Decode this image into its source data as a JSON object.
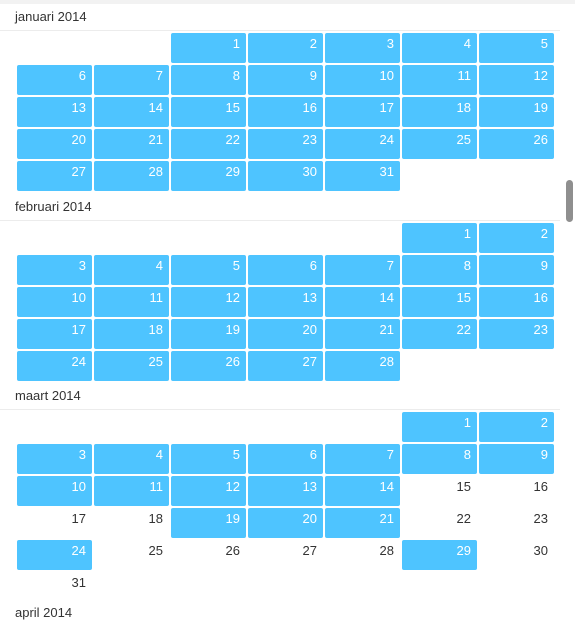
{
  "months": [
    {
      "title": "januari 2014",
      "start_col": 2,
      "days": 31,
      "selected": [
        1,
        2,
        3,
        4,
        5,
        6,
        7,
        8,
        9,
        10,
        11,
        12,
        13,
        14,
        15,
        16,
        17,
        18,
        19,
        20,
        21,
        22,
        23,
        24,
        25,
        26,
        27,
        28,
        29,
        30,
        31
      ]
    },
    {
      "title": "februari 2014",
      "start_col": 5,
      "days": 28,
      "selected": [
        1,
        2,
        3,
        4,
        5,
        6,
        7,
        8,
        9,
        10,
        11,
        12,
        13,
        14,
        15,
        16,
        17,
        18,
        19,
        20,
        21,
        22,
        23,
        24,
        25,
        26,
        27,
        28
      ]
    },
    {
      "title": "maart 2014",
      "start_col": 5,
      "days": 31,
      "selected": [
        1,
        2,
        3,
        4,
        5,
        6,
        7,
        8,
        9,
        10,
        11,
        12,
        13,
        14,
        19,
        20,
        21,
        24,
        29
      ]
    }
  ],
  "next_month_title": "april 2014",
  "colors": {
    "selected_bg": "#4ec4ff",
    "selected_text": "#ffffff",
    "text": "#333333"
  }
}
